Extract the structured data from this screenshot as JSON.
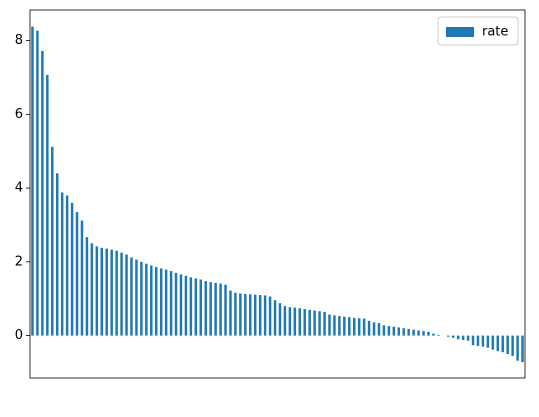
{
  "chart_data": {
    "type": "bar",
    "categories": [
      null,
      null,
      null,
      null,
      null,
      null,
      null,
      null,
      null,
      null,
      null,
      null,
      null,
      null,
      null,
      null,
      null,
      null,
      null,
      null,
      null,
      null,
      null,
      null,
      null,
      null,
      null,
      null,
      null,
      null,
      null,
      null,
      null,
      null,
      null,
      null,
      null,
      null,
      null,
      null,
      null,
      null,
      null,
      null,
      null,
      null,
      null,
      null,
      null,
      null,
      null,
      null,
      null,
      null,
      null,
      null,
      null,
      null,
      null,
      null,
      null,
      null,
      null,
      null,
      null,
      null,
      null,
      null,
      null,
      null,
      null,
      null,
      null,
      null,
      null,
      null,
      null,
      null,
      null,
      null,
      null,
      null,
      null,
      null,
      null,
      null,
      null,
      null,
      null,
      null,
      null,
      null,
      null,
      null,
      null,
      null,
      null,
      null,
      null,
      null
    ],
    "series": [
      {
        "name": "rate",
        "color": "#1f77b4",
        "values": [
          8.38,
          8.27,
          7.72,
          7.07,
          5.12,
          4.4,
          3.88,
          3.8,
          3.6,
          3.35,
          3.12,
          2.67,
          2.5,
          2.42,
          2.38,
          2.36,
          2.33,
          2.3,
          2.25,
          2.2,
          2.12,
          2.06,
          2.0,
          1.95,
          1.9,
          1.86,
          1.82,
          1.79,
          1.75,
          1.7,
          1.66,
          1.62,
          1.58,
          1.55,
          1.52,
          1.48,
          1.45,
          1.43,
          1.41,
          1.38,
          1.22,
          1.16,
          1.14,
          1.13,
          1.12,
          1.11,
          1.1,
          1.09,
          1.06,
          0.96,
          0.88,
          0.8,
          0.77,
          0.76,
          0.74,
          0.72,
          0.7,
          0.68,
          0.66,
          0.64,
          0.57,
          0.55,
          0.53,
          0.51,
          0.5,
          0.48,
          0.47,
          0.46,
          0.4,
          0.36,
          0.34,
          0.28,
          0.26,
          0.24,
          0.22,
          0.2,
          0.18,
          0.16,
          0.14,
          0.12,
          0.1,
          0.05,
          0.02,
          0.0,
          -0.03,
          -0.06,
          -0.1,
          -0.12,
          -0.14,
          -0.26,
          -0.28,
          -0.3,
          -0.33,
          -0.38,
          -0.42,
          -0.45,
          -0.5,
          -0.55,
          -0.68,
          -0.72
        ]
      }
    ],
    "ylim": [
      -1.15,
      8.83
    ],
    "yticks": [
      0,
      2,
      4,
      6,
      8
    ],
    "legend": "upper right"
  }
}
